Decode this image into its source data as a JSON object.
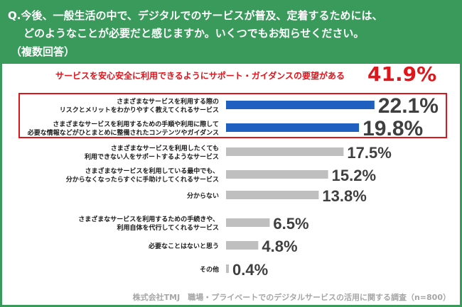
{
  "header": {
    "line1": "Q.今後、一般生活の中で、デジタルでのサービスが普及、定着するためには、",
    "line2": "どのようなことが必要だと感じますか。いくつでもお知らせください。",
    "line3": "（複数回答）"
  },
  "highlight": {
    "label": "サービスを安心安全に利用できるようにサポート・ガイダンスの要望がある",
    "value": "41.9%"
  },
  "source": "株式会社TMJ　職場・プライベートでのデジタルサービスの活用に関する調査（n=800）",
  "colors": {
    "header_bg": "#3a9a5c",
    "accent_red": "#e0141b",
    "highlight_bar": "#1f5fbf",
    "normal_bar": "#bfbfbf"
  },
  "chart_data": {
    "type": "bar",
    "orientation": "horizontal",
    "categories": [
      [
        "さまざまなサービスを利用する際の",
        "リスクとメリットをわかりやすく教えてくれるサービス"
      ],
      [
        "さまざまなサービスを利用するための手順や利用に際して",
        "必要な情報などがひとまとめに整備されたコンテンツやガイダンス"
      ],
      [
        "さまざまなサービスを利用したくても",
        "利用できない人をサポートするようなサービス"
      ],
      [
        "さまざまなサービスを利用している最中でも、",
        "分からなくなったらすぐに手助けしてくれるサービス"
      ],
      [
        "分からない"
      ],
      [
        "さまざまなサービスを利用するための手続きや、",
        "利用自体を代行してくれるサービス"
      ],
      [
        "必要なことはないと思う"
      ],
      [
        "その他"
      ]
    ],
    "values": [
      22.1,
      19.8,
      17.5,
      15.2,
      13.8,
      6.5,
      4.8,
      0.4
    ],
    "value_labels": [
      "22.1%",
      "19.8%",
      "17.5%",
      "15.2%",
      "13.8%",
      "6.5%",
      "4.8%",
      "0.4%"
    ],
    "highlighted": [
      true,
      true,
      false,
      false,
      false,
      false,
      false,
      false
    ]
  }
}
